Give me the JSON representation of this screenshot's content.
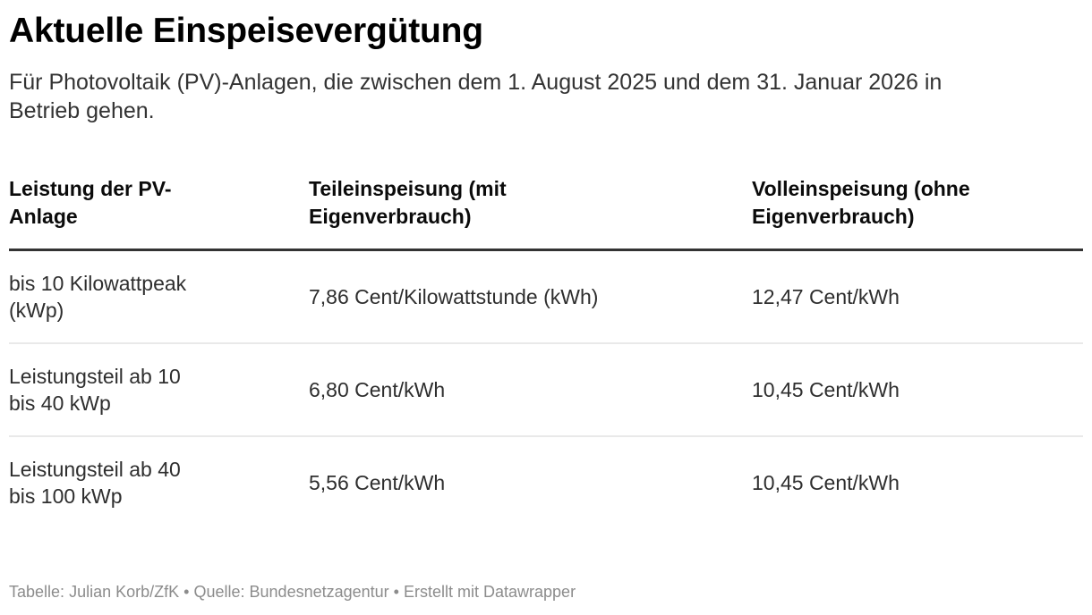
{
  "chart_data": {
    "type": "table",
    "title": "Aktuelle Einspeisevergütung",
    "description": "Für Photovoltaik (PV)-Anlagen, die zwischen dem 1. August 2025 und dem 31. Januar 2026 in Betrieb gehen.",
    "columns": [
      "Leistung der PV-Anlage",
      "Teileinspeisung (mit Eigenverbrauch)",
      "Volleinspeisung (ohne Eigenverbrauch)"
    ],
    "rows": [
      [
        "bis 10 Kilowattpeak (kWp)",
        "7,86 Cent/Kilowattstunde (kWh)",
        "12,47 Cent/kWh"
      ],
      [
        "Leistungsteil ab 10 bis 40 kWp",
        "6,80 Cent/kWh",
        "10,45 Cent/kWh"
      ],
      [
        "Leistungsteil ab 40 bis 100 kWp",
        "5,56 Cent/kWh",
        "10,45 Cent/kWh"
      ]
    ],
    "layout": {
      "grid": "horizontal-rules-only",
      "header_rule_color": "#333333",
      "row_rule_color": "#e9e9e9"
    }
  },
  "footer": {
    "attribution_label": "Tabelle:",
    "attribution": "Julian Korb/ZfK",
    "separator1": "•",
    "source_label": "Quelle:",
    "source": "Bundesnetzagentur",
    "separator2": "•",
    "created_with": "Erstellt mit Datawrapper"
  },
  "colors": {
    "title_text": "#000000",
    "body_text": "#333333",
    "header_rule": "#333333",
    "row_divider": "#e9e9e9",
    "footer_text": "#8c8c8c",
    "background": "#ffffff"
  }
}
